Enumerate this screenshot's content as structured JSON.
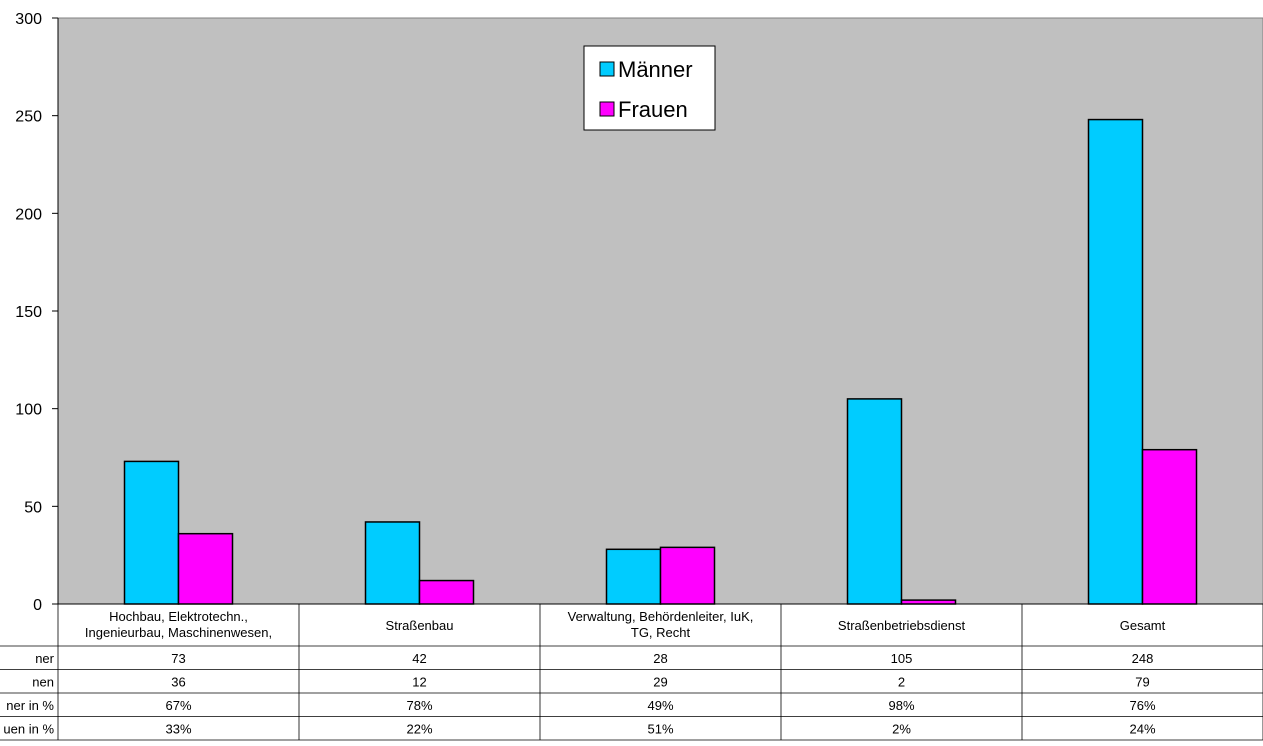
{
  "chart_data": {
    "type": "bar",
    "categories": [
      [
        "Hochbau, Elektrotechn.,",
        "Ingenieurbau, Maschinenwesen,"
      ],
      [
        "Straßenbau"
      ],
      [
        "Verwaltung, Behördenleiter, IuK,",
        "TG, Recht"
      ],
      [
        "Straßenbetriebsdienst"
      ],
      [
        "Gesamt"
      ]
    ],
    "series": [
      {
        "name": "Männer",
        "color": "#00ccff",
        "values": [
          73,
          42,
          28,
          105,
          248
        ]
      },
      {
        "name": "Frauen",
        "color": "#ff00ff",
        "values": [
          36,
          12,
          29,
          2,
          79
        ]
      }
    ],
    "ylim": [
      0,
      300
    ],
    "yticks": [
      0,
      50,
      100,
      150,
      200,
      250,
      300
    ],
    "grid": false,
    "legend": "top-center",
    "plot_background": "#c0c0c0",
    "table": {
      "rows": [
        {
          "label": "ner",
          "values": [
            "73",
            "42",
            "28",
            "105",
            "248"
          ]
        },
        {
          "label": "nen",
          "values": [
            "36",
            "12",
            "29",
            "2",
            "79"
          ]
        },
        {
          "label": "ner in %",
          "values": [
            "67%",
            "78%",
            "49%",
            "98%",
            "76%"
          ]
        },
        {
          "label": "uen in %",
          "values": [
            "33%",
            "22%",
            "51%",
            "2%",
            "24%"
          ]
        }
      ]
    }
  }
}
